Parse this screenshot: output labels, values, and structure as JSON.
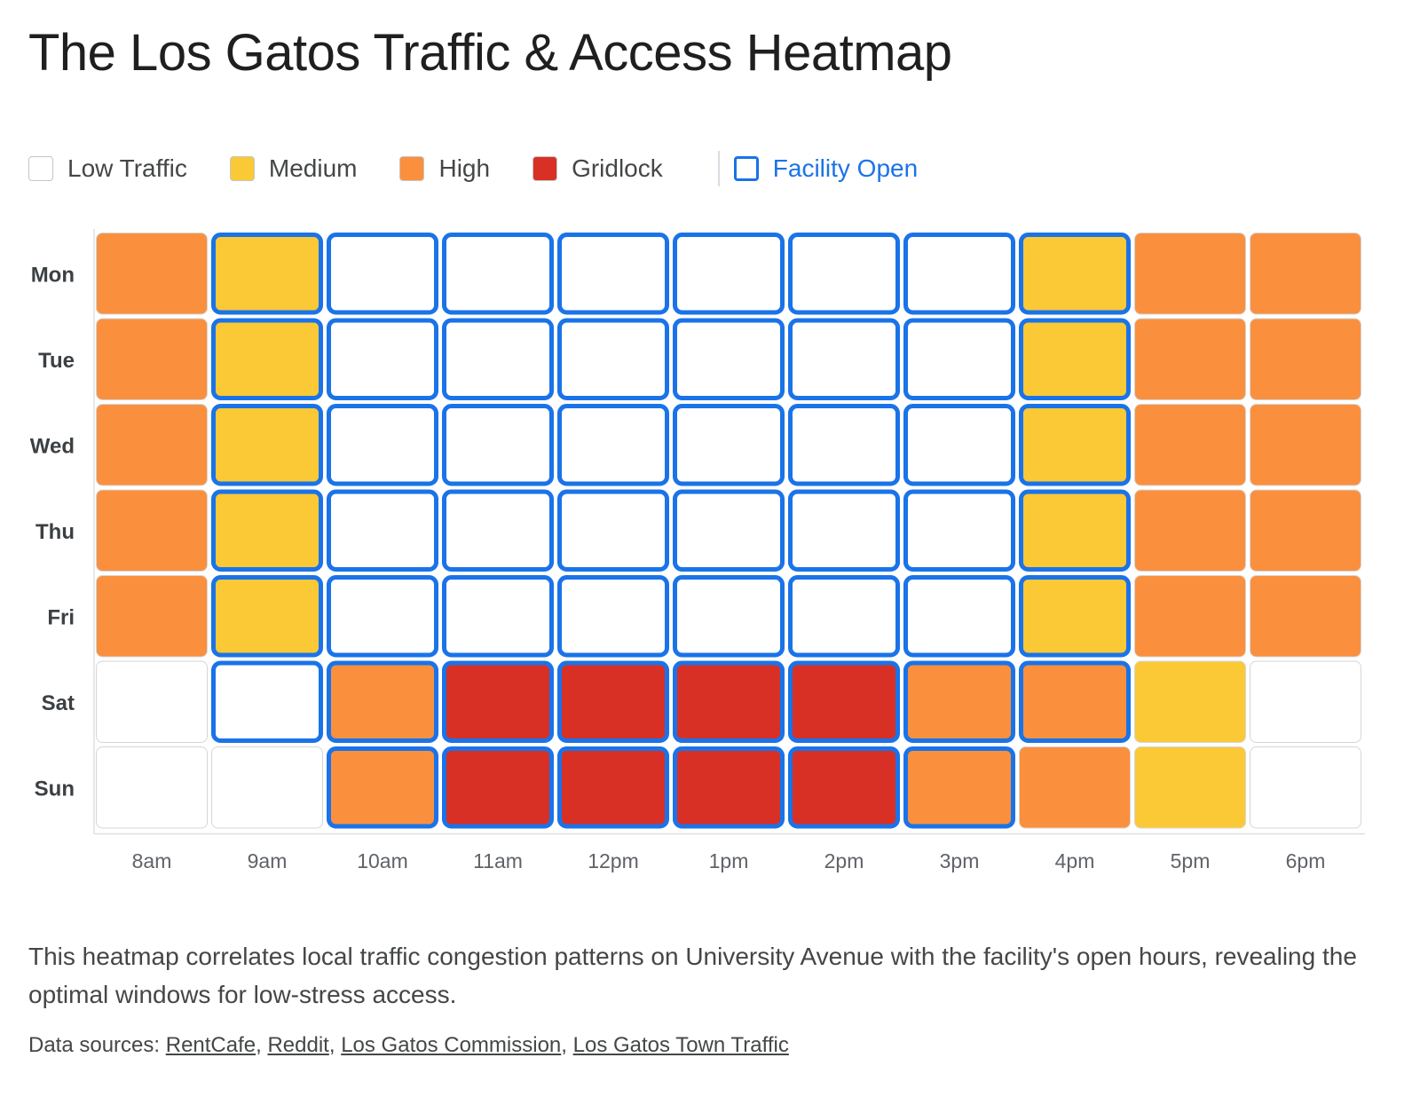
{
  "title": "The Los Gatos Traffic & Access Heatmap",
  "legend": {
    "items": [
      {
        "label": "Low Traffic",
        "color": "#ffffff"
      },
      {
        "label": "Medium",
        "color": "#fbc935"
      },
      {
        "label": "High",
        "color": "#fa903e"
      },
      {
        "label": "Gridlock",
        "color": "#d93025"
      }
    ],
    "open_label": "Facility Open",
    "open_color": "#1a73e8"
  },
  "chart_data": {
    "type": "heatmap",
    "title": "The Los Gatos Traffic & Access Heatmap",
    "rows": [
      "Mon",
      "Tue",
      "Wed",
      "Thu",
      "Fri",
      "Sat",
      "Sun"
    ],
    "columns": [
      "8am",
      "9am",
      "10am",
      "11am",
      "12pm",
      "1pm",
      "2pm",
      "3pm",
      "4pm",
      "5pm",
      "6pm"
    ],
    "levels": [
      "Low Traffic",
      "Medium",
      "High",
      "Gridlock"
    ],
    "traffic": [
      [
        "High",
        "Medium",
        "Low Traffic",
        "Low Traffic",
        "Low Traffic",
        "Low Traffic",
        "Low Traffic",
        "Low Traffic",
        "Medium",
        "High",
        "High"
      ],
      [
        "High",
        "Medium",
        "Low Traffic",
        "Low Traffic",
        "Low Traffic",
        "Low Traffic",
        "Low Traffic",
        "Low Traffic",
        "Medium",
        "High",
        "High"
      ],
      [
        "High",
        "Medium",
        "Low Traffic",
        "Low Traffic",
        "Low Traffic",
        "Low Traffic",
        "Low Traffic",
        "Low Traffic",
        "Medium",
        "High",
        "High"
      ],
      [
        "High",
        "Medium",
        "Low Traffic",
        "Low Traffic",
        "Low Traffic",
        "Low Traffic",
        "Low Traffic",
        "Low Traffic",
        "Medium",
        "High",
        "High"
      ],
      [
        "High",
        "Medium",
        "Low Traffic",
        "Low Traffic",
        "Low Traffic",
        "Low Traffic",
        "Low Traffic",
        "Low Traffic",
        "Medium",
        "High",
        "High"
      ],
      [
        "Low Traffic",
        "Low Traffic",
        "High",
        "Gridlock",
        "Gridlock",
        "Gridlock",
        "Gridlock",
        "High",
        "High",
        "Medium",
        "Low Traffic"
      ],
      [
        "Low Traffic",
        "Low Traffic",
        "High",
        "Gridlock",
        "Gridlock",
        "Gridlock",
        "Gridlock",
        "High",
        "High",
        "Medium",
        "Low Traffic"
      ]
    ],
    "facility_open": [
      [
        false,
        true,
        true,
        true,
        true,
        true,
        true,
        true,
        true,
        false,
        false
      ],
      [
        false,
        true,
        true,
        true,
        true,
        true,
        true,
        true,
        true,
        false,
        false
      ],
      [
        false,
        true,
        true,
        true,
        true,
        true,
        true,
        true,
        true,
        false,
        false
      ],
      [
        false,
        true,
        true,
        true,
        true,
        true,
        true,
        true,
        true,
        false,
        false
      ],
      [
        false,
        true,
        true,
        true,
        true,
        true,
        true,
        true,
        true,
        false,
        false
      ],
      [
        false,
        true,
        true,
        true,
        true,
        true,
        true,
        true,
        true,
        false,
        false
      ],
      [
        false,
        false,
        true,
        true,
        true,
        true,
        true,
        true,
        false,
        false,
        false
      ]
    ],
    "level_colors": {
      "Low Traffic": "#ffffff",
      "Medium": "#fbc935",
      "High": "#fa903e",
      "Gridlock": "#d93025"
    },
    "open_border_color": "#1a73e8"
  },
  "description": "This heatmap correlates local traffic congestion patterns on University Avenue with the facility's open hours, revealing the optimal windows for low-stress access.",
  "sources": {
    "prefix": "Data sources: ",
    "links": [
      "RentCafe",
      "Reddit",
      "Los Gatos Commission",
      "Los Gatos Town Traffic"
    ]
  }
}
